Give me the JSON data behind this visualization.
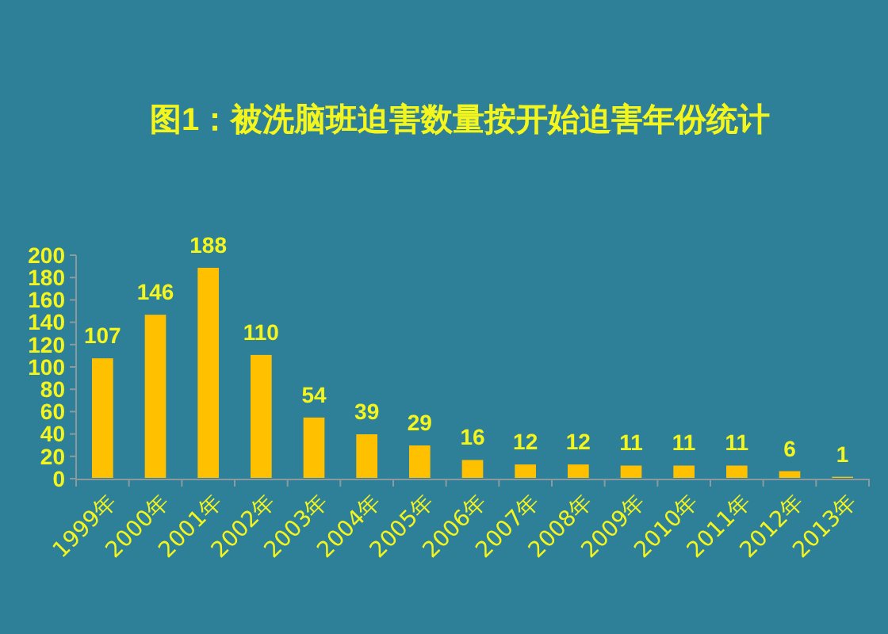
{
  "chart_data": {
    "type": "bar",
    "title": "图1：被洗脑班迫害数量按开始迫害年份统计",
    "categories": [
      "1999年",
      "2000年",
      "2001年",
      "2002年",
      "2003年",
      "2004年",
      "2005年",
      "2006年",
      "2007年",
      "2008年",
      "2009年",
      "2010年",
      "2011年",
      "2012年",
      "2013年"
    ],
    "values": [
      107,
      146,
      188,
      110,
      54,
      39,
      29,
      16,
      12,
      12,
      11,
      11,
      11,
      6,
      1
    ],
    "color": "#ffc000",
    "ylim": [
      0,
      200
    ],
    "yticks": [
      0,
      20,
      40,
      60,
      80,
      100,
      120,
      140,
      160,
      180,
      200
    ],
    "data_labels": true
  }
}
